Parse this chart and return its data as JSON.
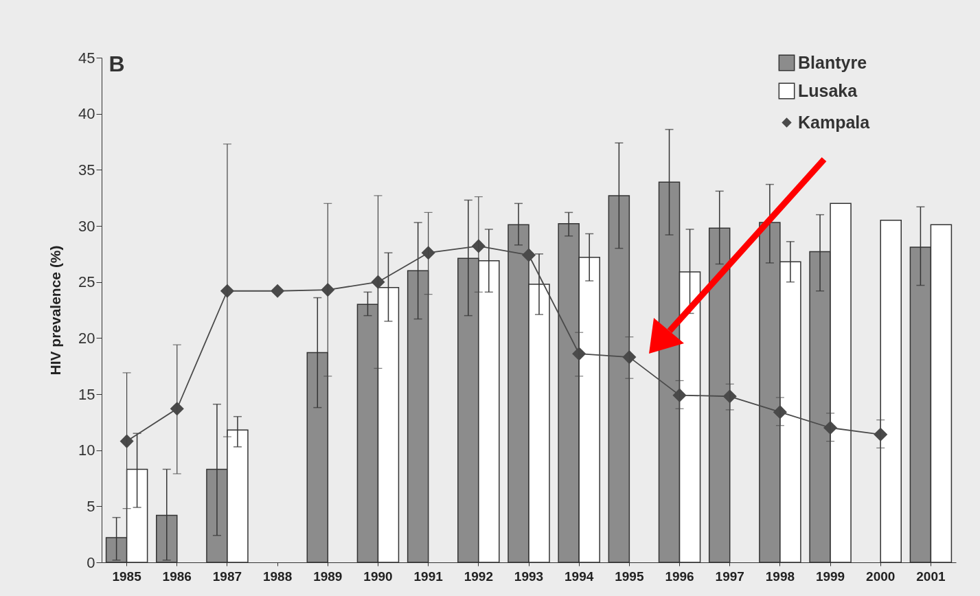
{
  "chart_data": {
    "type": "bar",
    "title": "B",
    "ylabel": "HIV prevalence (%)",
    "categories": [
      "1985",
      "1986",
      "1987",
      "1988",
      "1989",
      "1990",
      "1991",
      "1992",
      "1993",
      "1994",
      "1995",
      "1996",
      "1997",
      "1998",
      "1999",
      "2000",
      "2001"
    ],
    "series": [
      {
        "name": "Blantyre",
        "color": "#8c8c8c",
        "values": [
          2.2,
          4.2,
          8.3,
          null,
          18.7,
          23.0,
          26.0,
          27.1,
          30.1,
          30.2,
          32.7,
          33.9,
          29.8,
          30.3,
          27.7,
          null,
          28.1
        ],
        "errors": [
          [
            0.2,
            4.0
          ],
          [
            0.2,
            8.3
          ],
          [
            2.4,
            14.1
          ],
          null,
          [
            13.8,
            23.6
          ],
          [
            22.0,
            24.1
          ],
          [
            21.7,
            30.3
          ],
          [
            22.0,
            32.3
          ],
          [
            28.3,
            32.0
          ],
          [
            29.1,
            31.2
          ],
          [
            28.0,
            37.4
          ],
          [
            29.2,
            38.6
          ],
          [
            26.6,
            33.1
          ],
          [
            26.7,
            33.7
          ],
          [
            24.2,
            31.0
          ],
          null,
          [
            24.7,
            31.7
          ]
        ]
      },
      {
        "name": "Lusaka",
        "color": "#ffffff",
        "values": [
          8.3,
          null,
          11.8,
          null,
          null,
          24.5,
          null,
          26.9,
          24.8,
          27.2,
          null,
          25.9,
          null,
          26.8,
          32.0,
          30.5,
          30.1
        ],
        "errors": [
          [
            4.9,
            11.5
          ],
          null,
          [
            10.3,
            13.0
          ],
          null,
          null,
          [
            21.5,
            27.6
          ],
          null,
          [
            24.1,
            29.7
          ],
          [
            22.1,
            27.5
          ],
          [
            25.1,
            29.3
          ],
          null,
          [
            22.2,
            29.7
          ],
          null,
          [
            25.0,
            28.6
          ],
          null,
          null,
          null
        ]
      },
      {
        "name": "Kampala",
        "type": "line",
        "color": "#4a4a4a",
        "marker": "diamond",
        "values": [
          10.8,
          13.7,
          24.2,
          24.2,
          24.3,
          25.0,
          27.6,
          28.2,
          27.4,
          18.6,
          18.3,
          14.9,
          14.8,
          13.4,
          12.0,
          11.4,
          null
        ],
        "errors": [
          [
            4.8,
            16.9
          ],
          [
            7.9,
            19.4
          ],
          [
            11.2,
            37.3
          ],
          null,
          [
            16.6,
            32.0
          ],
          [
            17.3,
            32.7
          ],
          [
            23.9,
            31.2
          ],
          [
            24.1,
            32.6
          ],
          null,
          [
            16.6,
            20.5
          ],
          [
            16.4,
            20.1
          ],
          [
            13.7,
            16.2
          ],
          [
            13.6,
            15.9
          ],
          [
            12.2,
            14.7
          ],
          [
            10.8,
            13.3
          ],
          [
            10.2,
            12.7
          ],
          null
        ]
      }
    ],
    "ylim": [
      0,
      45
    ],
    "yticks": [
      0,
      5,
      10,
      15,
      20,
      25,
      30,
      35,
      40,
      45
    ],
    "grid": false,
    "legend": "top right"
  }
}
